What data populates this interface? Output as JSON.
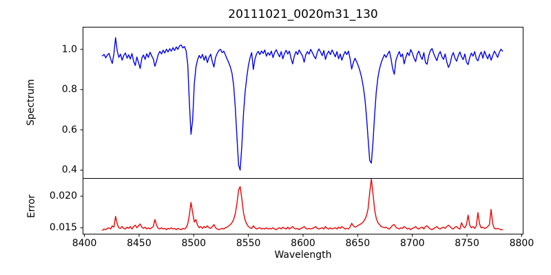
{
  "figure": {
    "background": "#ffffff",
    "frame_color": "#000000",
    "text_color": "#000000"
  },
  "chart_data": {
    "type": "line",
    "title": "20111021_0020m31_130",
    "xlabel": "Wavelength",
    "xlim": [
      8398.7,
      8801.3
    ],
    "xticks": [
      8400,
      8450,
      8500,
      8550,
      8600,
      8650,
      8700,
      8750,
      8800
    ],
    "xtick_labels": [
      "8400",
      "8450",
      "8500",
      "8550",
      "8600",
      "8650",
      "8700",
      "8750",
      "8800"
    ],
    "x_start": 8416.5,
    "x_step": 1.5,
    "grid": false,
    "legend": "none",
    "panels": [
      {
        "name": "spectrum",
        "ylabel": "Spectrum",
        "color": "#0000ee",
        "ylim": [
          0.3587,
          1.1103
        ],
        "yticks": [
          1.0,
          0.8,
          0.6,
          0.4
        ],
        "ytick_labels": [
          "1.0",
          "0.8",
          "0.6",
          "0.4"
        ],
        "y": [
          0.968,
          0.975,
          0.958,
          0.972,
          0.98,
          0.952,
          0.93,
          0.978,
          1.058,
          0.992,
          0.96,
          0.976,
          0.946,
          0.97,
          0.982,
          0.956,
          0.973,
          0.952,
          0.979,
          0.94,
          0.92,
          0.962,
          0.935,
          0.905,
          0.956,
          0.972,
          0.95,
          0.978,
          0.96,
          0.986,
          0.968,
          0.952,
          0.916,
          0.942,
          0.974,
          0.99,
          0.977,
          0.996,
          0.982,
          1.001,
          0.987,
          1.003,
          0.991,
          1.008,
          0.994,
          1.012,
          1.0,
          1.017,
          1.022,
          1.007,
          1.014,
          0.993,
          0.925,
          0.74,
          0.578,
          0.648,
          0.828,
          0.912,
          0.948,
          0.97,
          0.956,
          0.975,
          0.946,
          0.968,
          0.934,
          0.96,
          0.976,
          0.938,
          0.912,
          0.96,
          0.98,
          0.994,
          1.0,
          0.984,
          0.991,
          0.972,
          0.952,
          0.934,
          0.912,
          0.882,
          0.822,
          0.712,
          0.565,
          0.425,
          0.4,
          0.52,
          0.678,
          0.788,
          0.862,
          0.918,
          0.958,
          0.984,
          0.9,
          0.952,
          0.977,
          0.99,
          0.974,
          0.992,
          0.979,
          0.997,
          0.966,
          0.984,
          0.971,
          0.991,
          0.959,
          0.984,
          0.998,
          0.979,
          0.963,
          0.989,
          0.953,
          0.979,
          0.995,
          0.977,
          0.991,
          0.956,
          0.928,
          0.966,
          0.989,
          0.974,
          0.997,
          0.981,
          0.968,
          0.936,
          0.974,
          0.989,
          0.976,
          1.0,
          0.984,
          0.966,
          0.953,
          0.984,
          1.002,
          0.987,
          0.969,
          0.994,
          0.95,
          0.977,
          0.991,
          0.974,
          0.997,
          0.981,
          0.963,
          0.989,
          0.953,
          0.977,
          0.946,
          0.971,
          0.989,
          0.974,
          0.991,
          0.956,
          0.902,
          0.934,
          0.956,
          0.938,
          0.918,
          0.894,
          0.862,
          0.818,
          0.758,
          0.668,
          0.558,
          0.448,
          0.435,
          0.542,
          0.678,
          0.788,
          0.86,
          0.904,
          0.934,
          0.956,
          0.974,
          0.96,
          0.977,
          0.991,
          0.952,
          0.904,
          0.876,
          0.946,
          0.97,
          0.989,
          0.963,
          0.977,
          0.928,
          0.96,
          0.984,
          0.969,
          0.999,
          0.981,
          0.956,
          0.939,
          0.977,
          0.991,
          0.966,
          0.95,
          0.984,
          0.934,
          0.926,
          0.969,
          0.994,
          1.004,
          0.979,
          0.96,
          0.944,
          0.974,
          0.989,
          0.963,
          0.95,
          0.977,
          0.938,
          0.91,
          0.929,
          0.966,
          0.984,
          0.956,
          0.941,
          0.969,
          0.987,
          0.963,
          0.949,
          0.977,
          0.936,
          0.924,
          0.959,
          0.981,
          0.966,
          0.989,
          0.953,
          0.943,
          0.971,
          0.987,
          0.956,
          0.991,
          0.969,
          0.953,
          0.977,
          0.946,
          0.969,
          0.991,
          0.977,
          0.96,
          0.984,
          1.001,
          0.991
        ]
      },
      {
        "name": "error",
        "ylabel": "Error",
        "color": "#ee0000",
        "ylim": [
          0.014,
          0.0228
        ],
        "yticks": [
          0.02,
          0.015
        ],
        "ytick_labels": [
          "0.020",
          "0.015"
        ],
        "y": [
          0.0146,
          0.0148,
          0.0147,
          0.0149,
          0.015,
          0.0148,
          0.0153,
          0.0151,
          0.0168,
          0.0156,
          0.015,
          0.0149,
          0.0152,
          0.0149,
          0.0148,
          0.0151,
          0.0149,
          0.0152,
          0.0148,
          0.0152,
          0.0154,
          0.015,
          0.0153,
          0.0156,
          0.0151,
          0.0149,
          0.0151,
          0.0148,
          0.015,
          0.0148,
          0.015,
          0.0152,
          0.0163,
          0.0154,
          0.0149,
          0.0148,
          0.015,
          0.0148,
          0.0149,
          0.0147,
          0.0149,
          0.0148,
          0.015,
          0.0148,
          0.0149,
          0.0147,
          0.0149,
          0.0148,
          0.0147,
          0.0149,
          0.0148,
          0.015,
          0.0156,
          0.017,
          0.019,
          0.0174,
          0.0159,
          0.0163,
          0.0154,
          0.015,
          0.0152,
          0.0149,
          0.0152,
          0.015,
          0.0153,
          0.015,
          0.0149,
          0.0152,
          0.0155,
          0.015,
          0.0148,
          0.0147,
          0.0148,
          0.0149,
          0.0148,
          0.015,
          0.0151,
          0.0153,
          0.0155,
          0.0158,
          0.0163,
          0.0172,
          0.0188,
          0.021,
          0.0215,
          0.0196,
          0.0174,
          0.0162,
          0.0156,
          0.0152,
          0.015,
          0.0149,
          0.0153,
          0.015,
          0.0148,
          0.0149,
          0.015,
          0.0148,
          0.0149,
          0.0148,
          0.015,
          0.0148,
          0.0149,
          0.0148,
          0.015,
          0.0148,
          0.0147,
          0.0149,
          0.015,
          0.0148,
          0.0151,
          0.0149,
          0.0148,
          0.0151,
          0.0148,
          0.015,
          0.0152,
          0.0149,
          0.0148,
          0.0149,
          0.0147,
          0.0149,
          0.015,
          0.0152,
          0.0149,
          0.0148,
          0.0149,
          0.0148,
          0.0149,
          0.015,
          0.0152,
          0.0149,
          0.0148,
          0.0149,
          0.015,
          0.0148,
          0.0152,
          0.0149,
          0.0148,
          0.015,
          0.0148,
          0.0149,
          0.015,
          0.0148,
          0.0151,
          0.0149,
          0.0152,
          0.015,
          0.0148,
          0.0149,
          0.0148,
          0.0151,
          0.0157,
          0.0153,
          0.0151,
          0.0152,
          0.0154,
          0.0155,
          0.0157,
          0.0159,
          0.0163,
          0.0169,
          0.018,
          0.0206,
          0.0227,
          0.0203,
          0.0178,
          0.0165,
          0.0158,
          0.0155,
          0.0152,
          0.0151,
          0.015,
          0.0151,
          0.0149,
          0.0148,
          0.0151,
          0.0154,
          0.0155,
          0.0151,
          0.0149,
          0.0148,
          0.015,
          0.0149,
          0.0152,
          0.015,
          0.0148,
          0.0149,
          0.0147,
          0.0149,
          0.015,
          0.0152,
          0.0149,
          0.0148,
          0.015,
          0.0151,
          0.0148,
          0.0152,
          0.0153,
          0.015,
          0.0148,
          0.0147,
          0.0149,
          0.015,
          0.0152,
          0.0149,
          0.0148,
          0.015,
          0.0151,
          0.0149,
          0.0152,
          0.0154,
          0.0152,
          0.0149,
          0.0148,
          0.0151,
          0.0152,
          0.0149,
          0.0148,
          0.0158,
          0.0152,
          0.015,
          0.0155,
          0.017,
          0.0154,
          0.015,
          0.0152,
          0.0149,
          0.0153,
          0.0174,
          0.0156,
          0.015,
          0.0151,
          0.0149,
          0.015,
          0.0152,
          0.0155,
          0.0179,
          0.0156,
          0.0149,
          0.0148,
          0.0149,
          0.0148,
          0.0147,
          0.0147
        ]
      }
    ]
  }
}
